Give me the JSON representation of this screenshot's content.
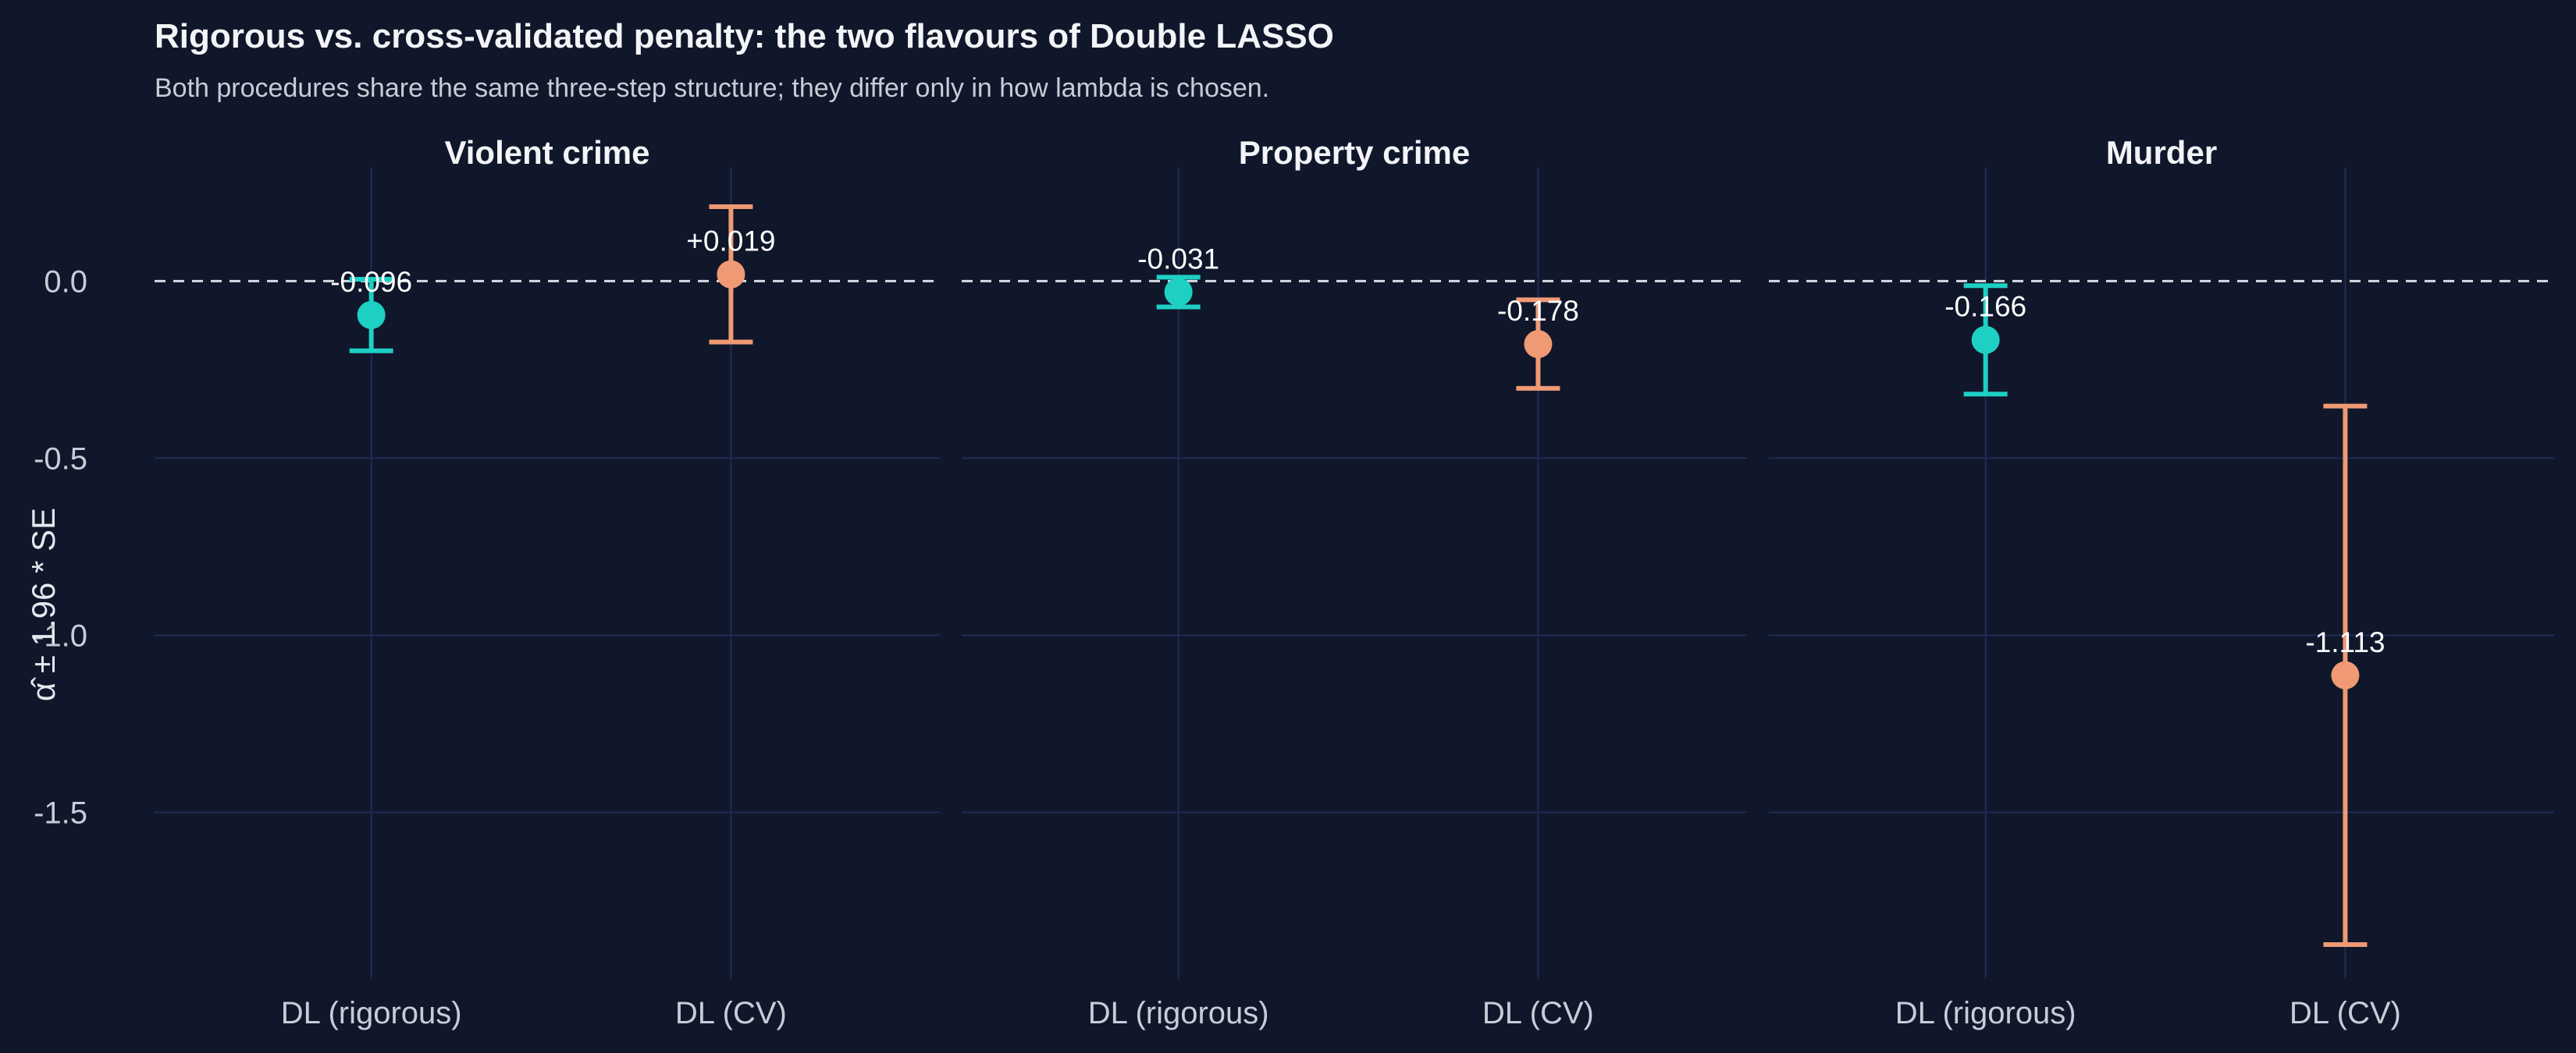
{
  "title": "Rigorous vs. cross-validated penalty: the two flavours of Double LASSO",
  "subtitle": "Both procedures share the same three-step structure; they differ only in how lambda is chosen.",
  "colors": {
    "background": "#10172a",
    "grid": "#1e2d55",
    "rigorous": "#1ecfc4",
    "cv": "#ef9a74",
    "zero_line": "#d6dae3"
  },
  "chart_data": {
    "type": "scatter",
    "subtype": "point-range faceted",
    "ylabel": "α̂ ± 1.96 * SE",
    "ylim": [
      -1.97,
      0.32
    ],
    "y_ticks": [
      0.0,
      -0.5,
      -1.0,
      -1.5
    ],
    "y_tick_labels": [
      "0.0",
      "-0.5",
      "-1.0",
      "-1.5"
    ],
    "reference_line": 0,
    "grid": true,
    "categories": [
      "DL (rigorous)",
      "DL (CV)"
    ],
    "facets": [
      {
        "title": "Violent crime",
        "points": [
          {
            "method": "DL (rigorous)",
            "estimate": -0.096,
            "lower": -0.197,
            "upper": 0.005,
            "label": "-0.096"
          },
          {
            "method": "DL (CV)",
            "estimate": 0.019,
            "lower": -0.172,
            "upper": 0.21,
            "label": "+0.019"
          }
        ]
      },
      {
        "title": "Property crime",
        "points": [
          {
            "method": "DL (rigorous)",
            "estimate": -0.031,
            "lower": -0.073,
            "upper": 0.011,
            "label": "-0.031"
          },
          {
            "method": "DL (CV)",
            "estimate": -0.178,
            "lower": -0.303,
            "upper": -0.053,
            "label": "-0.178"
          }
        ]
      },
      {
        "title": "Murder",
        "points": [
          {
            "method": "DL (rigorous)",
            "estimate": -0.166,
            "lower": -0.319,
            "upper": -0.013,
            "label": "-0.166"
          },
          {
            "method": "DL (CV)",
            "estimate": -1.113,
            "lower": -1.873,
            "upper": -0.353,
            "label": "-1.113"
          }
        ]
      }
    ]
  }
}
